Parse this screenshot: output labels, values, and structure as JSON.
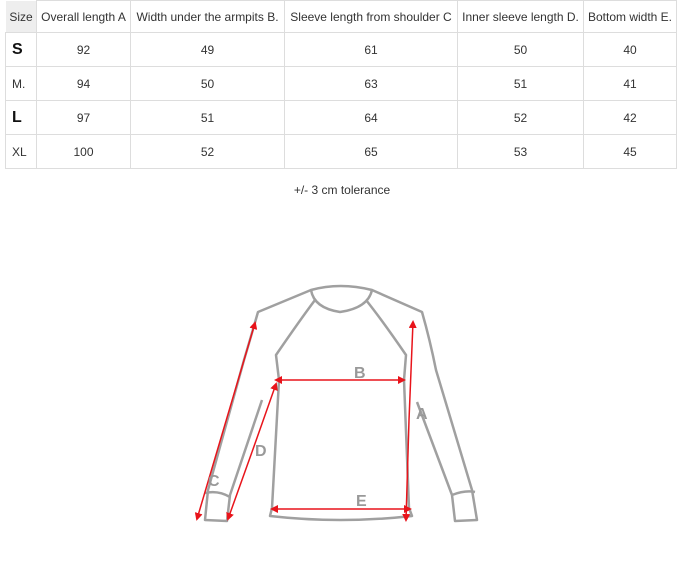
{
  "table": {
    "headers": [
      "Size",
      "Overall length A",
      "Width under the armpits B.",
      "Sleeve length from shoulder C",
      "Inner sleeve length D.",
      "Bottom width E."
    ],
    "rows": [
      [
        "S",
        "92",
        "49",
        "61",
        "50",
        "40"
      ],
      [
        "M.",
        "94",
        "50",
        "63",
        "51",
        "41"
      ],
      [
        "L",
        "97",
        "51",
        "64",
        "52",
        "42"
      ],
      [
        "XL",
        "100",
        "52",
        "65",
        "53",
        "45"
      ]
    ]
  },
  "tolerance": "+/- 3 cm tolerance",
  "diagram": {
    "labels": {
      "a": "A",
      "b": "B",
      "c": "C",
      "d": "D",
      "e": "E"
    },
    "arrow_color": "#e8141b",
    "outline_color": "#a0a0a0"
  }
}
